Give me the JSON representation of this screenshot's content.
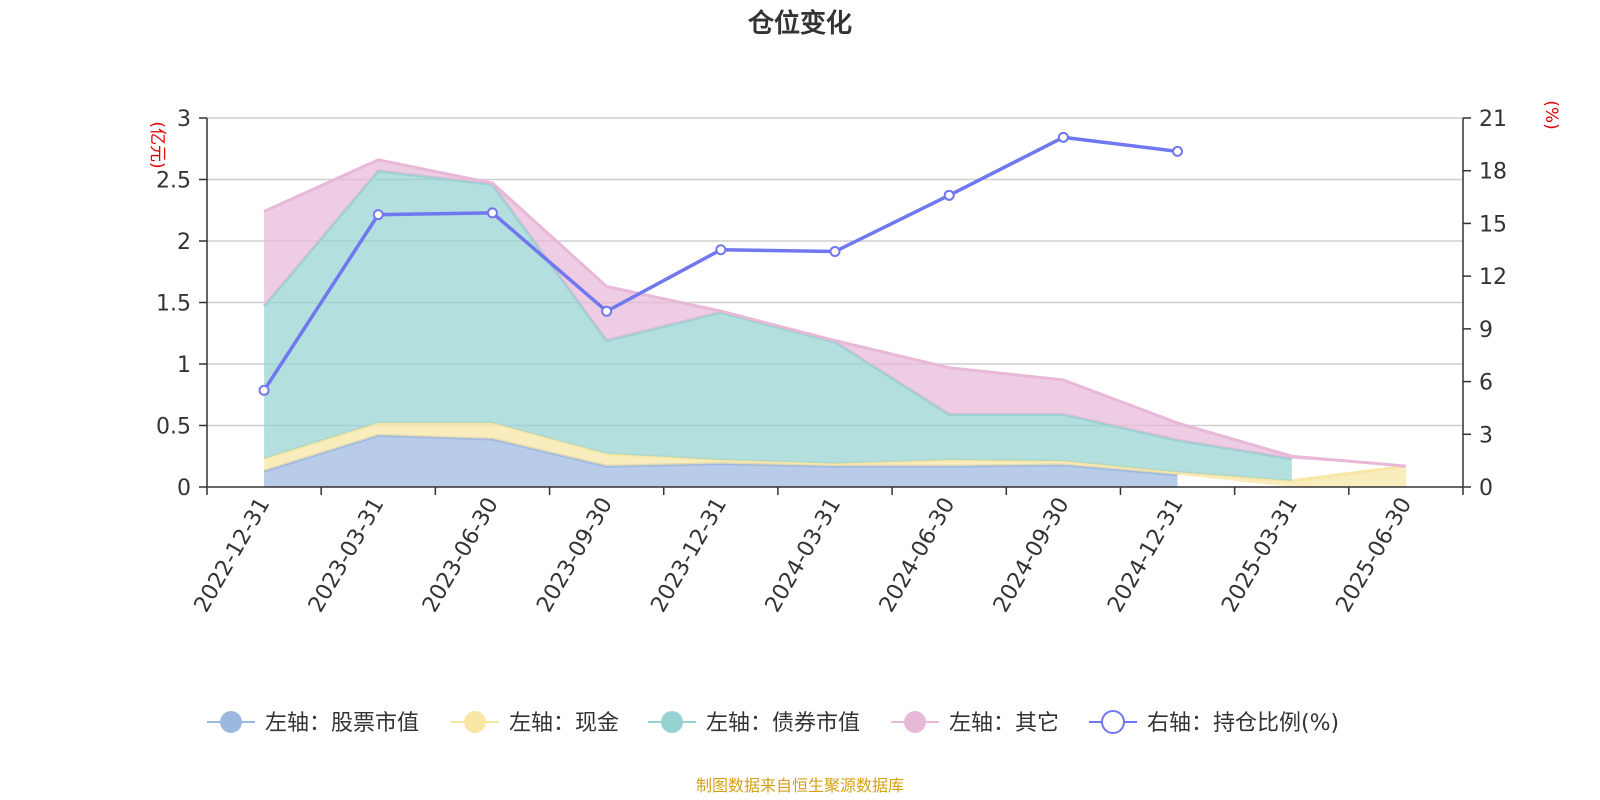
{
  "chart_data": {
    "type": "area",
    "title": "仓位变化",
    "left_unit": "(亿元)",
    "right_unit": "(%)",
    "categories": [
      "2022-12-31",
      "2023-03-31",
      "2023-06-30",
      "2023-09-30",
      "2023-12-31",
      "2024-03-31",
      "2024-06-30",
      "2024-09-30",
      "2024-12-31",
      "2025-03-31",
      "2025-06-30"
    ],
    "left_axis": {
      "min": 0,
      "max": 3,
      "ticks": [
        "0",
        "0.5",
        "1",
        "1.5",
        "2",
        "2.5",
        "3"
      ]
    },
    "right_axis": {
      "min": 0,
      "max": 21,
      "ticks": [
        "0",
        "3",
        "6",
        "9",
        "12",
        "15",
        "18",
        "21"
      ]
    },
    "series": [
      {
        "name": "左轴：股票市值",
        "axis": "left",
        "kind": "area",
        "stack": true,
        "color": "#9db8e0",
        "values": [
          0.13,
          0.42,
          0.39,
          0.17,
          0.19,
          0.17,
          0.17,
          0.18,
          0.1,
          null,
          null
        ]
      },
      {
        "name": "左轴：现金",
        "axis": "left",
        "kind": "area",
        "stack": true,
        "color": "#f8e6a4",
        "values": [
          0.1,
          0.1,
          0.13,
          0.1,
          0.03,
          0.02,
          0.05,
          0.03,
          0.02,
          0.05,
          0.17
        ]
      },
      {
        "name": "左轴：债券市值",
        "axis": "left",
        "kind": "area",
        "stack": true,
        "color": "#96d2d2",
        "values": [
          1.24,
          2.05,
          1.94,
          0.92,
          1.2,
          0.99,
          0.37,
          0.38,
          0.26,
          0.18,
          null
        ]
      },
      {
        "name": "左轴：其它",
        "axis": "left",
        "kind": "area",
        "stack": true,
        "color": "#e8b8d8",
        "values": [
          0.77,
          0.09,
          0.01,
          0.44,
          0.01,
          0.01,
          0.38,
          0.28,
          0.14,
          0.02,
          0.0
        ]
      },
      {
        "name": "右轴：持仓比例(%)",
        "axis": "right",
        "kind": "line",
        "color": "#7177ee",
        "values": [
          5.5,
          15.5,
          15.6,
          10.0,
          13.5,
          13.4,
          16.6,
          19.9,
          19.1,
          null,
          null
        ]
      }
    ]
  },
  "legend_items": [
    "左轴：股票市值",
    "左轴：现金",
    "左轴：债券市值",
    "左轴：其它",
    "右轴：持仓比例(%)"
  ],
  "source_text": "制图数据来自恒生聚源数据库"
}
